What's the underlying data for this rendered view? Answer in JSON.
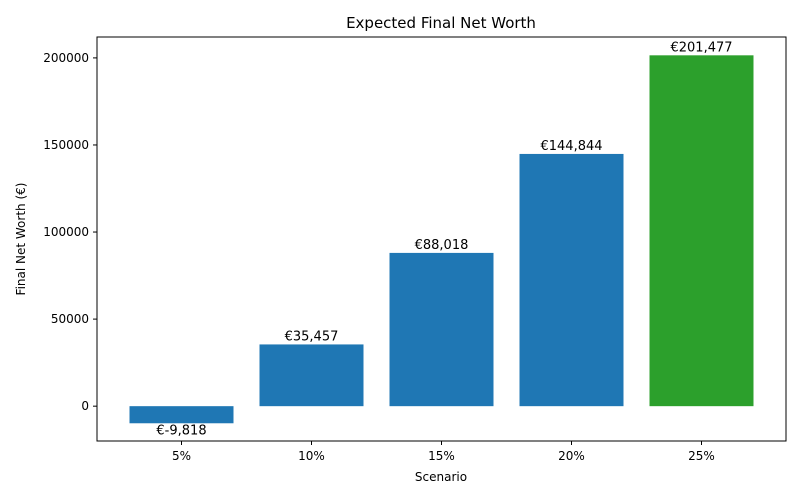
{
  "chart_data": {
    "type": "bar",
    "title": "Expected Final Net Worth",
    "xlabel": "Scenario",
    "ylabel": "Final Net Worth (€)",
    "categories": [
      "5%",
      "10%",
      "15%",
      "20%",
      "25%"
    ],
    "values": [
      -9818,
      35457,
      88018,
      144844,
      201477
    ],
    "data_labels": [
      "€-9,818",
      "€35,457",
      "€88,018",
      "€144,844",
      "€201,477"
    ],
    "y_ticks": [
      0,
      50000,
      100000,
      150000,
      200000
    ],
    "y_tick_labels": [
      "0",
      "50000",
      "100000",
      "150000",
      "200000"
    ],
    "ylim": [
      -20000,
      212000
    ],
    "grid": false,
    "colors": {
      "default_bar": "#1f77b4",
      "highlight_bar": "#2ca02c",
      "axis": "#000000"
    },
    "highlight_index": 4
  }
}
